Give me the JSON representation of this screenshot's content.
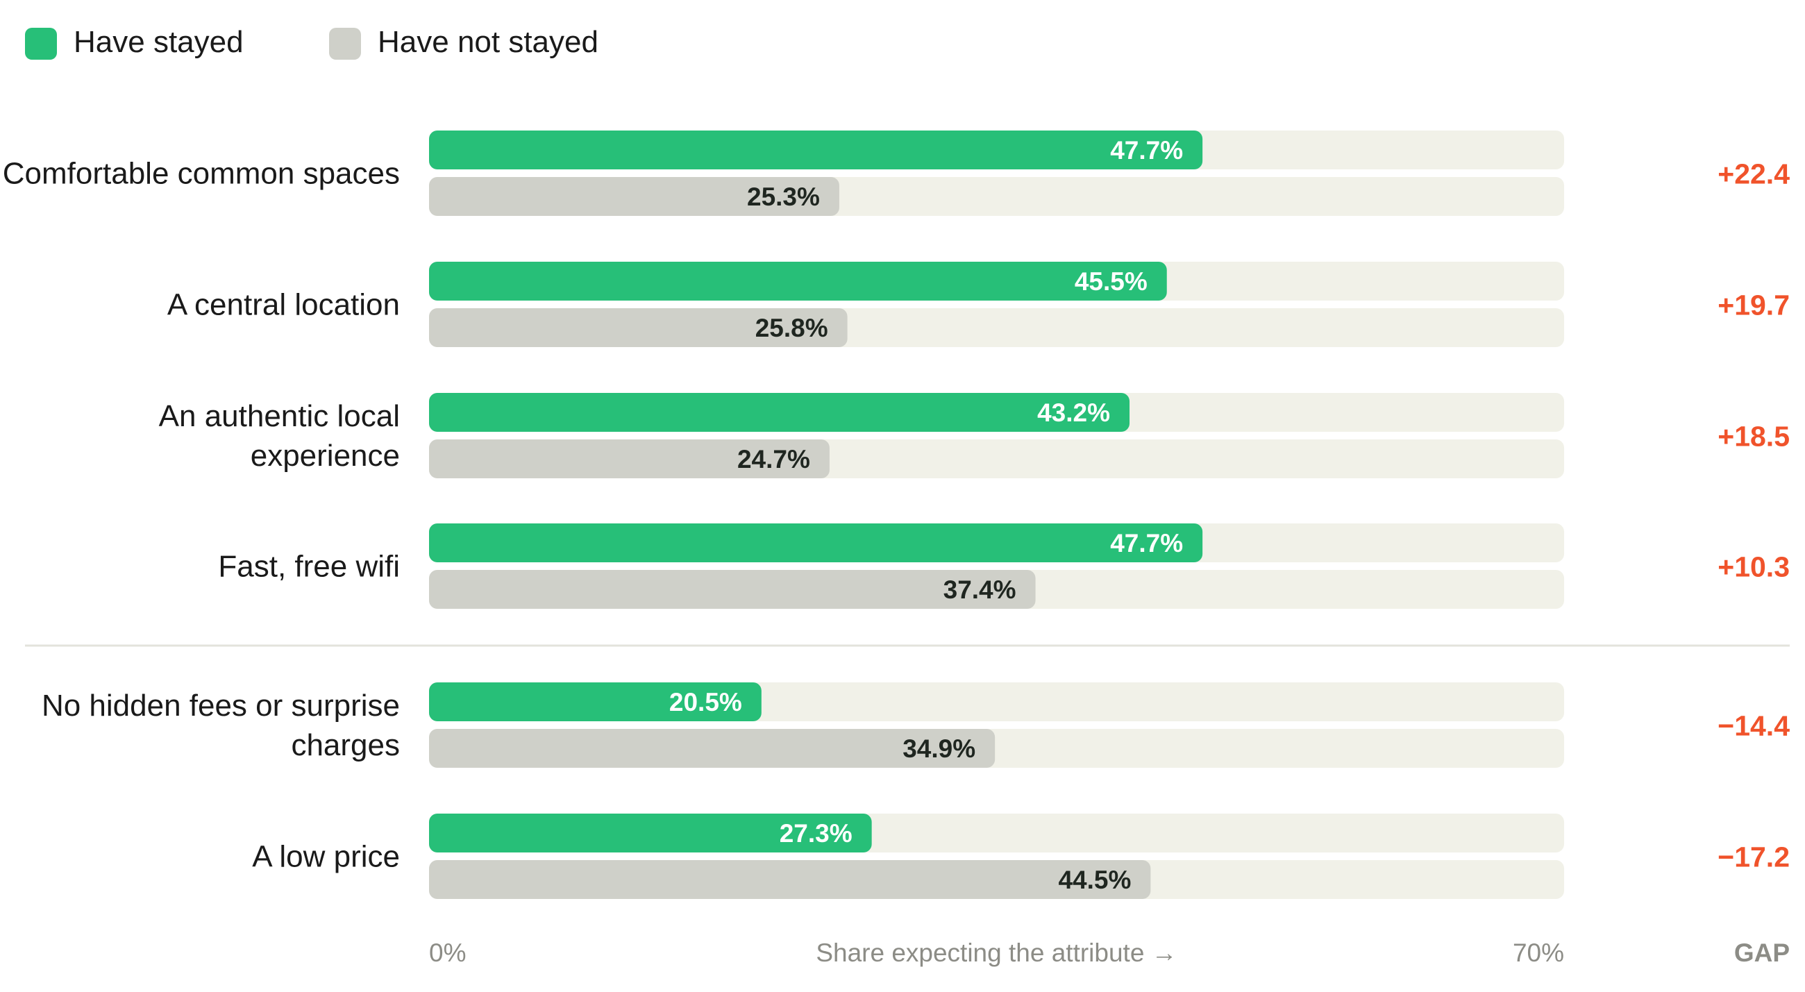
{
  "chart_data": {
    "type": "bar",
    "orientation": "horizontal",
    "legend_position": "top-left",
    "legend": [
      {
        "label": "Have stayed",
        "color": "#27bf78"
      },
      {
        "label": "Have not stayed",
        "color": "#cfd0c9"
      }
    ],
    "categories": [
      "Comfortable common spaces",
      "A central location",
      "An authentic local experience",
      "Fast, free wifi",
      "No hidden fees or surprise charges",
      "A low price"
    ],
    "series": [
      {
        "name": "Have stayed",
        "values": [
          47.7,
          45.5,
          43.2,
          47.7,
          20.5,
          27.3
        ],
        "labels": [
          "47.7%",
          "45.5%",
          "43.2%",
          "47.7%",
          "20.5%",
          "27.3%"
        ]
      },
      {
        "name": "Have not stayed",
        "values": [
          25.3,
          25.8,
          24.7,
          37.4,
          34.9,
          44.5
        ],
        "labels": [
          "25.3%",
          "25.8%",
          "24.7%",
          "37.4%",
          "34.9%",
          "44.5%"
        ]
      }
    ],
    "gap": [
      "+22.4",
      "+19.7",
      "+18.5",
      "+10.3",
      "−14.4",
      "−17.2"
    ],
    "gap_header": "GAP",
    "xlim": [
      0,
      70
    ],
    "x_tick_labels": [
      "0%",
      "70%"
    ],
    "xlabel": "Share expecting the attribute →",
    "group_separator_after_index": 3,
    "colors": {
      "stayed": "#27bf78",
      "not_stayed": "#cfd0c9",
      "track": "#f1f1e8",
      "gap": "#f0532b",
      "axis_text": "#8c8c86",
      "label_on_green": "#ffffff",
      "label_on_grey": "#1f2620",
      "separator": "#e3e3dc"
    }
  }
}
